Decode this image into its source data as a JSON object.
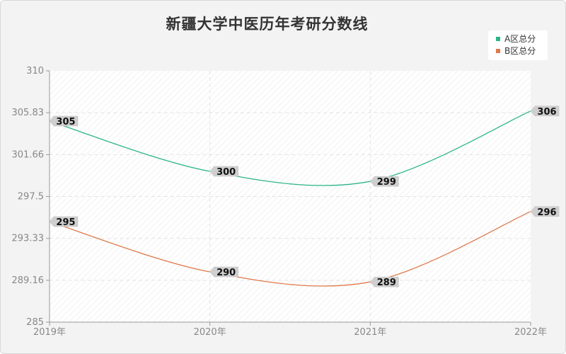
{
  "chart_data": {
    "type": "line",
    "title": "新疆大学中医历年考研分数线",
    "xlabel": "",
    "ylabel": "",
    "categories": [
      "2019年",
      "2020年",
      "2021年",
      "2022年"
    ],
    "y_ticks": [
      "310",
      "305.83",
      "301.66",
      "297.5",
      "293.33",
      "289.16",
      "285"
    ],
    "ylim": [
      285,
      310
    ],
    "grid": true,
    "legend_position": "top-right",
    "series": [
      {
        "name": "A区总分",
        "color": "#2ab48a",
        "values": [
          305,
          300,
          299,
          306
        ]
      },
      {
        "name": "B区总分",
        "color": "#e07848",
        "values": [
          295,
          290,
          289,
          296
        ]
      }
    ]
  }
}
